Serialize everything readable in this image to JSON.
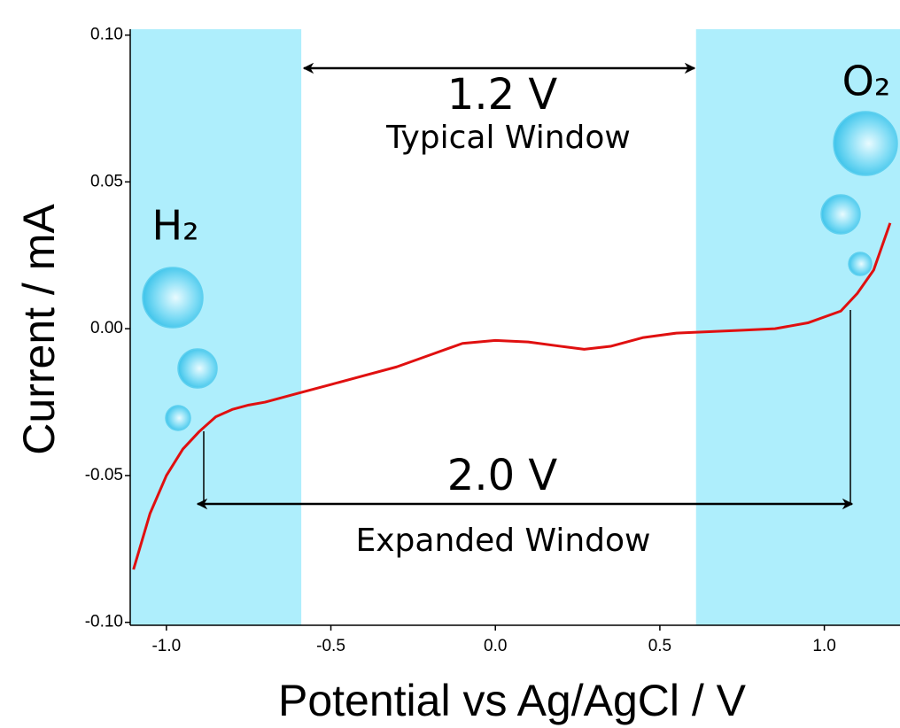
{
  "chart_data": {
    "type": "line",
    "x_label": "Potential vs Ag/AgCl / V",
    "y_label": "Current / mA",
    "x": [
      -1.1,
      -1.05,
      -1.0,
      -0.95,
      -0.9,
      -0.85,
      -0.8,
      -0.75,
      -0.7,
      -0.6,
      -0.5,
      -0.4,
      -0.3,
      -0.2,
      -0.1,
      0.0,
      0.1,
      0.2,
      0.27,
      0.35,
      0.45,
      0.55,
      0.65,
      0.75,
      0.85,
      0.95,
      1.05,
      1.1,
      1.15,
      1.2
    ],
    "values": [
      -0.082,
      -0.063,
      -0.05,
      -0.041,
      -0.035,
      -0.03,
      -0.0275,
      -0.026,
      -0.025,
      -0.022,
      -0.019,
      -0.016,
      -0.013,
      -0.009,
      -0.005,
      -0.004,
      -0.0045,
      -0.006,
      -0.007,
      -0.006,
      -0.003,
      -0.0015,
      -0.001,
      -0.0005,
      0.0,
      0.002,
      0.006,
      0.012,
      0.02,
      0.036
    ],
    "color": "#e01010",
    "xlim": [
      -1.11,
      1.23
    ],
    "ylim": [
      -0.101,
      0.102
    ],
    "xticks": [
      {
        "value": -1.0,
        "label": "-1.0"
      },
      -0.5,
      {
        "value": 0.0,
        "label": "0.0"
      },
      0.5,
      {
        "value": 1.0,
        "label": "1.0"
      }
    ],
    "yticks": [
      {
        "value": 0.1,
        "label": "0.10"
      },
      0.05,
      {
        "value": 0.0,
        "label": "0.00"
      },
      -0.05,
      {
        "value": -0.1,
        "label": "-0.10"
      }
    ],
    "bands": [
      {
        "from": -1.11,
        "to": -0.59
      },
      {
        "from": 0.61,
        "to": 1.23
      }
    ],
    "band_color": "#aeeefc",
    "annotations": [
      "1.2 V",
      "Typical Window",
      "2.0 V",
      "Expanded Window",
      "H₂",
      "O₂"
    ]
  }
}
